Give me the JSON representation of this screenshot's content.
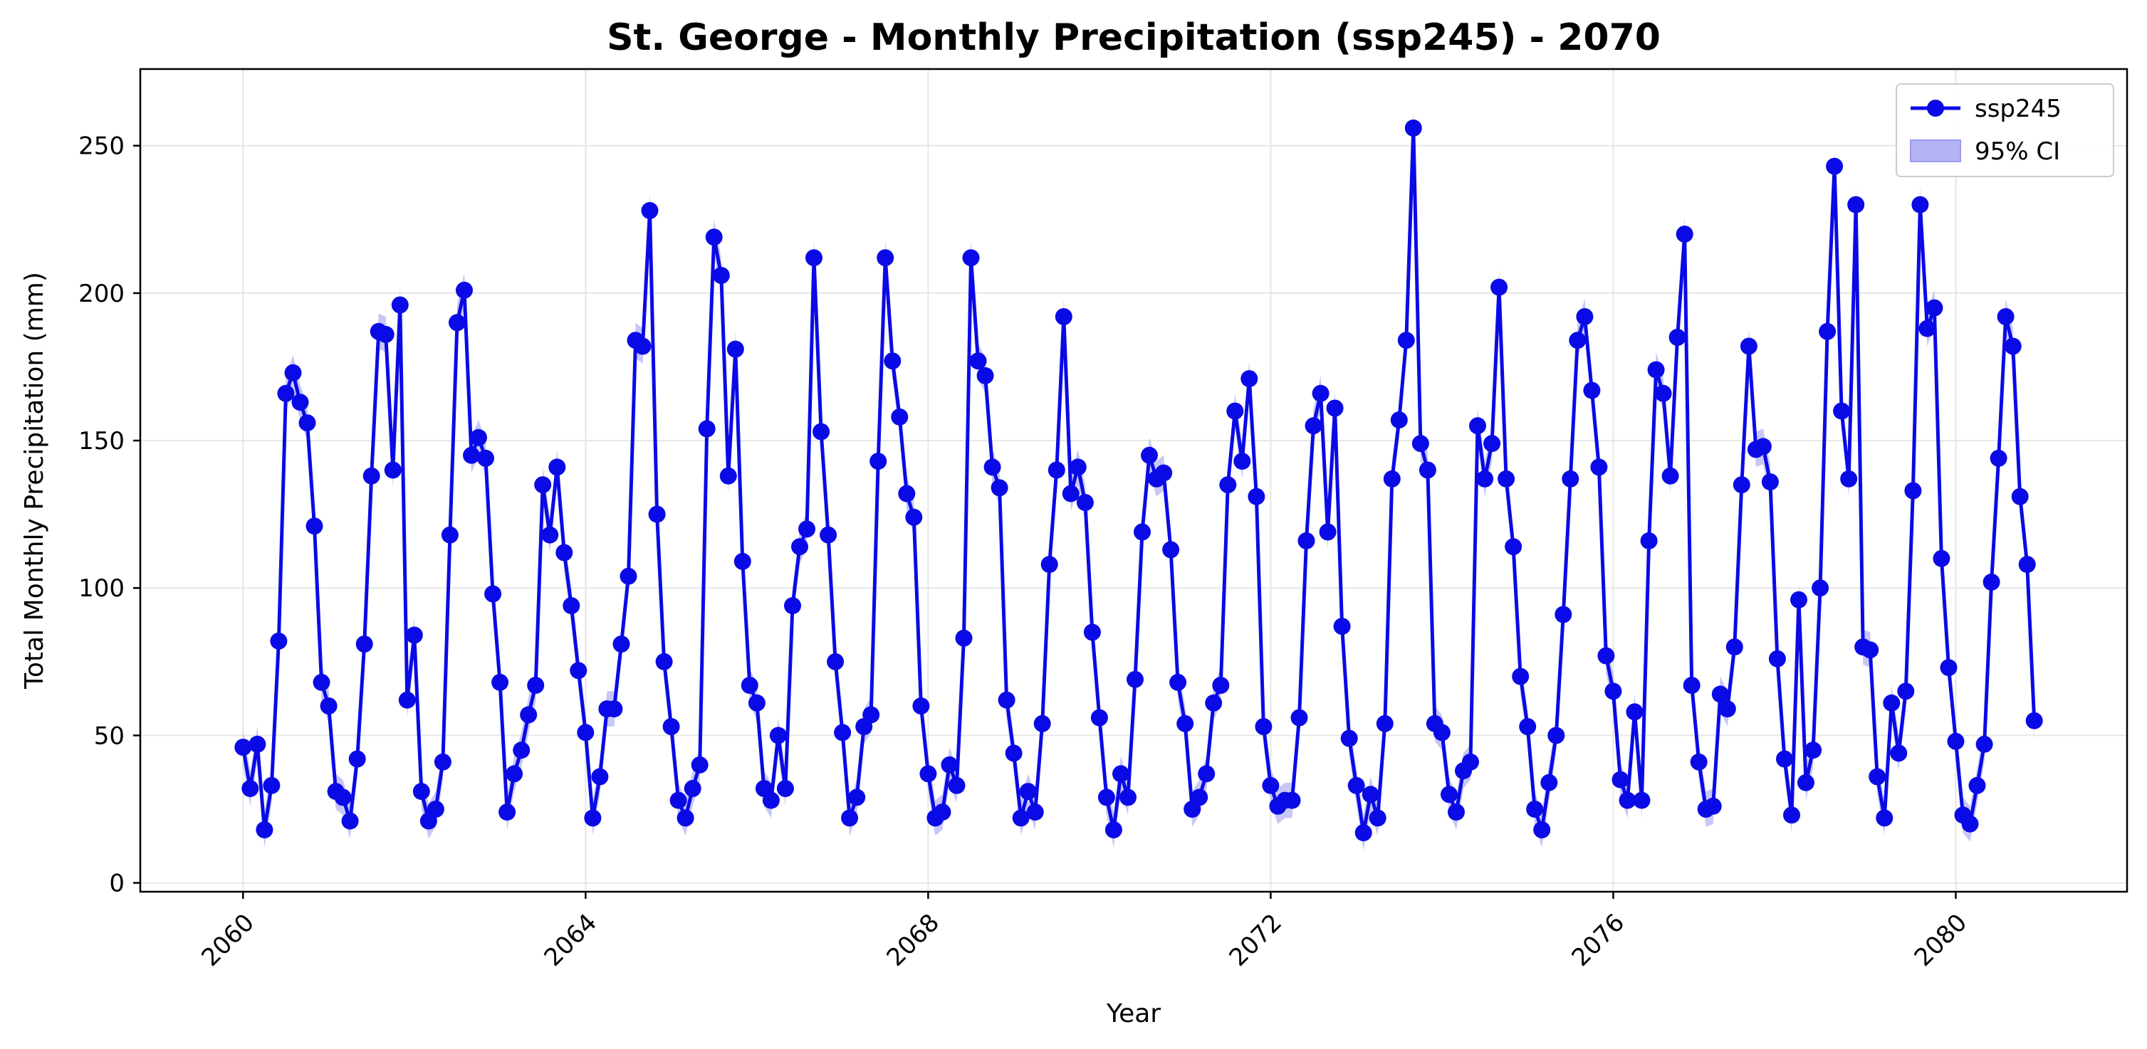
{
  "chart_data": {
    "type": "line",
    "title": "St. George - Monthly Precipitation (ssp245) - 2070",
    "xlabel": "Year",
    "ylabel": "Total Monthly Precipitation (mm)",
    "xlim": [
      2058.8,
      2082.0
    ],
    "ylim": [
      -3,
      276
    ],
    "x_ticks": [
      "2060",
      "2064",
      "2068",
      "2072",
      "2076",
      "2080"
    ],
    "y_ticks": [
      "0",
      "50",
      "100",
      "150",
      "200",
      "250"
    ],
    "grid": true,
    "legend_position": "top-right",
    "legend": [
      {
        "label": "ssp245",
        "kind": "line-marker"
      },
      {
        "label": "95% CI",
        "kind": "band"
      }
    ],
    "colors": {
      "line": "#0a0ae6",
      "band": "#b4b4f5",
      "grid": "#e6e6e6"
    },
    "x_start": "2060-01",
    "x_step_months": 1,
    "ci_half_width": 6,
    "series": [
      {
        "name": "ssp245",
        "values": [
          46,
          32,
          47,
          18,
          33,
          82,
          166,
          173,
          163,
          156,
          121,
          68,
          60,
          31,
          29,
          21,
          42,
          81,
          138,
          187,
          186,
          140,
          196,
          62,
          84,
          31,
          21,
          25,
          41,
          118,
          190,
          201,
          145,
          151,
          144,
          98,
          68,
          24,
          37,
          45,
          57,
          67,
          135,
          118,
          141,
          112,
          94,
          72,
          51,
          22,
          36,
          59,
          59,
          81,
          104,
          184,
          182,
          228,
          125,
          75,
          53,
          28,
          22,
          32,
          40,
          154,
          219,
          206,
          138,
          181,
          109,
          67,
          61,
          32,
          28,
          50,
          32,
          94,
          114,
          120,
          212,
          153,
          118,
          75,
          51,
          22,
          29,
          53,
          57,
          143,
          212,
          177,
          158,
          132,
          124,
          60,
          37,
          22,
          24,
          40,
          33,
          83,
          212,
          177,
          172,
          141,
          134,
          62,
          44,
          22,
          31,
          24,
          54,
          108,
          140,
          192,
          132,
          141,
          129,
          85,
          56,
          29,
          18,
          37,
          29,
          69,
          119,
          145,
          137,
          139,
          113,
          68,
          54,
          25,
          29,
          37,
          61,
          67,
          135,
          160,
          143,
          171,
          131,
          53,
          33,
          26,
          28,
          28,
          56,
          116,
          155,
          166,
          119,
          161,
          87,
          49,
          33,
          17,
          30,
          22,
          54,
          137,
          157,
          184,
          256,
          149,
          140,
          54,
          51,
          30,
          24,
          38,
          41,
          155,
          137,
          149,
          202,
          137,
          114,
          70,
          53,
          25,
          18,
          34,
          50,
          91,
          137,
          184,
          192,
          167,
          141,
          77,
          65,
          35,
          28,
          58,
          28,
          116,
          174,
          166,
          138,
          185,
          220,
          67,
          41,
          25,
          26,
          64,
          59,
          80,
          135,
          182,
          147,
          148,
          136,
          76,
          42,
          23,
          96,
          34,
          45,
          100,
          187,
          243,
          160,
          137,
          230,
          80,
          79,
          36,
          22,
          61,
          44,
          65,
          133,
          230,
          188,
          195,
          110,
          73,
          48,
          23,
          20,
          33,
          47,
          102,
          144,
          192,
          182,
          131,
          108,
          55
        ]
      }
    ]
  }
}
